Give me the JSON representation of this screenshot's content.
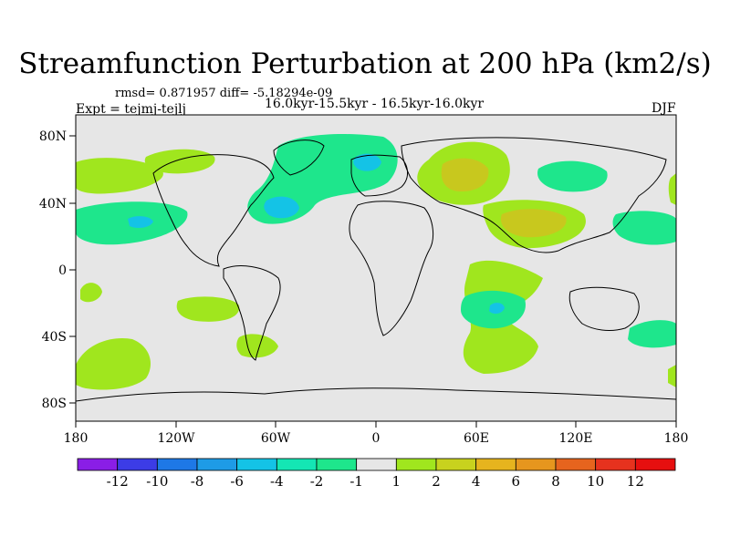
{
  "title": "Streamfunction Perturbation at 200 hPa (km2/s)",
  "stats": "rmsd= 0.871957 diff= -5.18294e-09",
  "experiment": "Expt = tejmj-tejlj",
  "period": "16.0kyr-15.5kyr - 16.5kyr-16.0kyr",
  "season": "DJF",
  "axes": {
    "lat_ticks": [
      "80N",
      "40N",
      "0",
      "40S",
      "80S"
    ],
    "lon_ticks": [
      "180",
      "120W",
      "60W",
      "0",
      "60E",
      "120E",
      "180"
    ]
  },
  "colorbar": {
    "labels": [
      "-12",
      "-10",
      "-8",
      "-6",
      "-4",
      "-2",
      "-1",
      "1",
      "2",
      "4",
      "6",
      "8",
      "10",
      "12"
    ],
    "colors": [
      "#8a1ee6",
      "#3c3ce6",
      "#1e78e6",
      "#1e9be6",
      "#14c3e6",
      "#14e6b4",
      "#1ee68c",
      "#e6e6e6",
      "#a0e61e",
      "#c8d21e",
      "#e6b41e",
      "#e6961e",
      "#e6641e",
      "#e6321e",
      "#e60f0f"
    ]
  },
  "colors": {
    "background": "#e6e6e6",
    "level_pos1": "#a0e61e",
    "level_pos2": "#c8c81e",
    "level_neg1": "#1ee68c",
    "level_neg2": "#14c3e6"
  }
}
